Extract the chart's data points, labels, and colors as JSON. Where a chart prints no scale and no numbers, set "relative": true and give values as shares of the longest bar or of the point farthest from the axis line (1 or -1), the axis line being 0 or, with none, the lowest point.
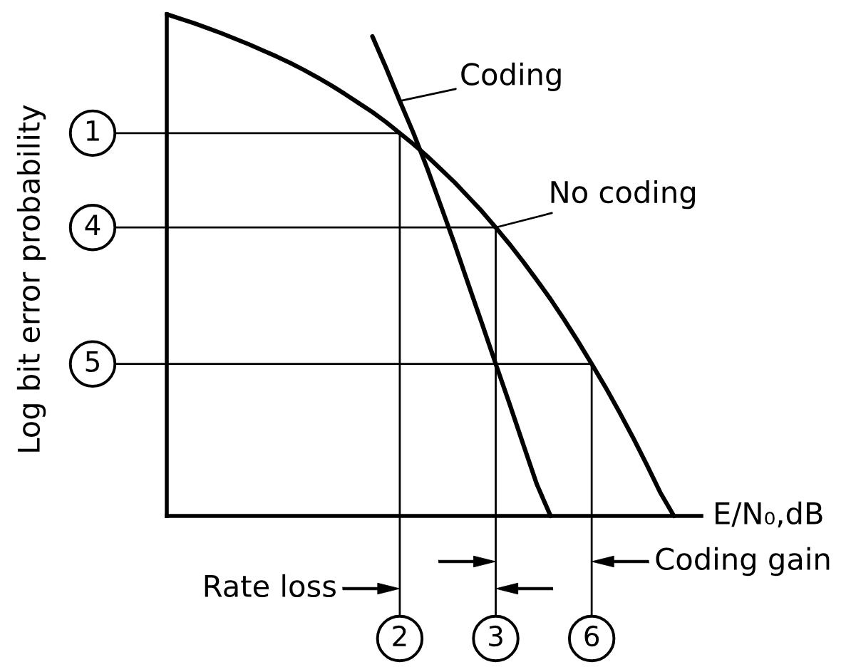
{
  "chart_data": {
    "type": "line",
    "relative": true,
    "tick_labels": false,
    "xlabel": "E/N₀,dB",
    "ylabel": "Log bit error probability",
    "annotations": [
      "1",
      "4",
      "5",
      "2",
      "3",
      "6",
      "Rate loss",
      "Coding gain"
    ],
    "categories": [
      null,
      null,
      null,
      null,
      null,
      null,
      null,
      null,
      null,
      null,
      null,
      null,
      null,
      null,
      null,
      null,
      null,
      null,
      null,
      null,
      null,
      null,
      null,
      null,
      null,
      null,
      null,
      null,
      null,
      null,
      null,
      null,
      null,
      null,
      null,
      null,
      null,
      null,
      null,
      null
    ],
    "series": [
      {
        "name": "No coding",
        "color": "#000000",
        "values": [
          1,
          0.991,
          0.982,
          0.972,
          0.962,
          0.951,
          0.94,
          0.928,
          0.916,
          0.903,
          0.889,
          0.874,
          0.858,
          0.841,
          0.823,
          0.805,
          0.785,
          0.763,
          0.741,
          0.717,
          0.691,
          0.665,
          0.636,
          0.607,
          0.575,
          0.542,
          0.507,
          0.47,
          0.432,
          0.391,
          0.348,
          0.303,
          0.257,
          0.208,
          0.157,
          0.103,
          0.047,
          0,
          null,
          null
        ]
      },
      {
        "name": "Coding",
        "color": "#000000",
        "values": [
          null,
          null,
          null,
          null,
          null,
          null,
          null,
          null,
          null,
          null,
          null,
          null,
          null,
          null,
          null,
          0.956,
          0.893,
          0.827,
          0.763,
          0.693,
          0.618,
          0.542,
          0.462,
          0.383,
          0.303,
          0.224,
          0.143,
          0.063,
          0,
          null,
          null,
          null,
          null,
          null,
          null,
          null,
          null,
          null,
          null,
          null
        ]
      },
      {
        "type": "step",
        "color": "#000000",
        "values": [
          0.763,
          0.763,
          0.763,
          0.763,
          0.763,
          0.763,
          0.763,
          0.763,
          0.763,
          0.763,
          0.763,
          0.763,
          0.763,
          0.763,
          0.763,
          0.763,
          0.763,
          0,
          null,
          null,
          null,
          null,
          null,
          null,
          null,
          null,
          null,
          null,
          null,
          null,
          null,
          null,
          null,
          null,
          null,
          null,
          null,
          null,
          null,
          null
        ]
      },
      {
        "type": "step",
        "color": "#000000",
        "values": [
          0.575,
          0.575,
          0.575,
          0.575,
          0.575,
          0.575,
          0.575,
          0.575,
          0.575,
          0.575,
          0.575,
          0.575,
          0.575,
          0.575,
          0.575,
          0.575,
          0.575,
          0.575,
          0.575,
          0.575,
          0.575,
          0.575,
          0.575,
          0.575,
          0,
          null,
          null,
          null,
          null,
          null,
          null,
          null,
          null,
          null,
          null,
          null,
          null,
          null,
          null,
          null
        ]
      },
      {
        "type": "step",
        "color": "#000000",
        "values": [
          0.303,
          0.303,
          0.303,
          0.303,
          0.303,
          0.303,
          0.303,
          0.303,
          0.303,
          0.303,
          0.303,
          0.303,
          0.303,
          0.303,
          0.303,
          0.303,
          0.303,
          0.303,
          0.303,
          0.303,
          0.303,
          0.303,
          0.303,
          0.303,
          0.303,
          0.303,
          0.303,
          0.303,
          0.303,
          0.303,
          0.303,
          0,
          null,
          null,
          null,
          null,
          null,
          null,
          null,
          null
        ]
      }
    ]
  }
}
